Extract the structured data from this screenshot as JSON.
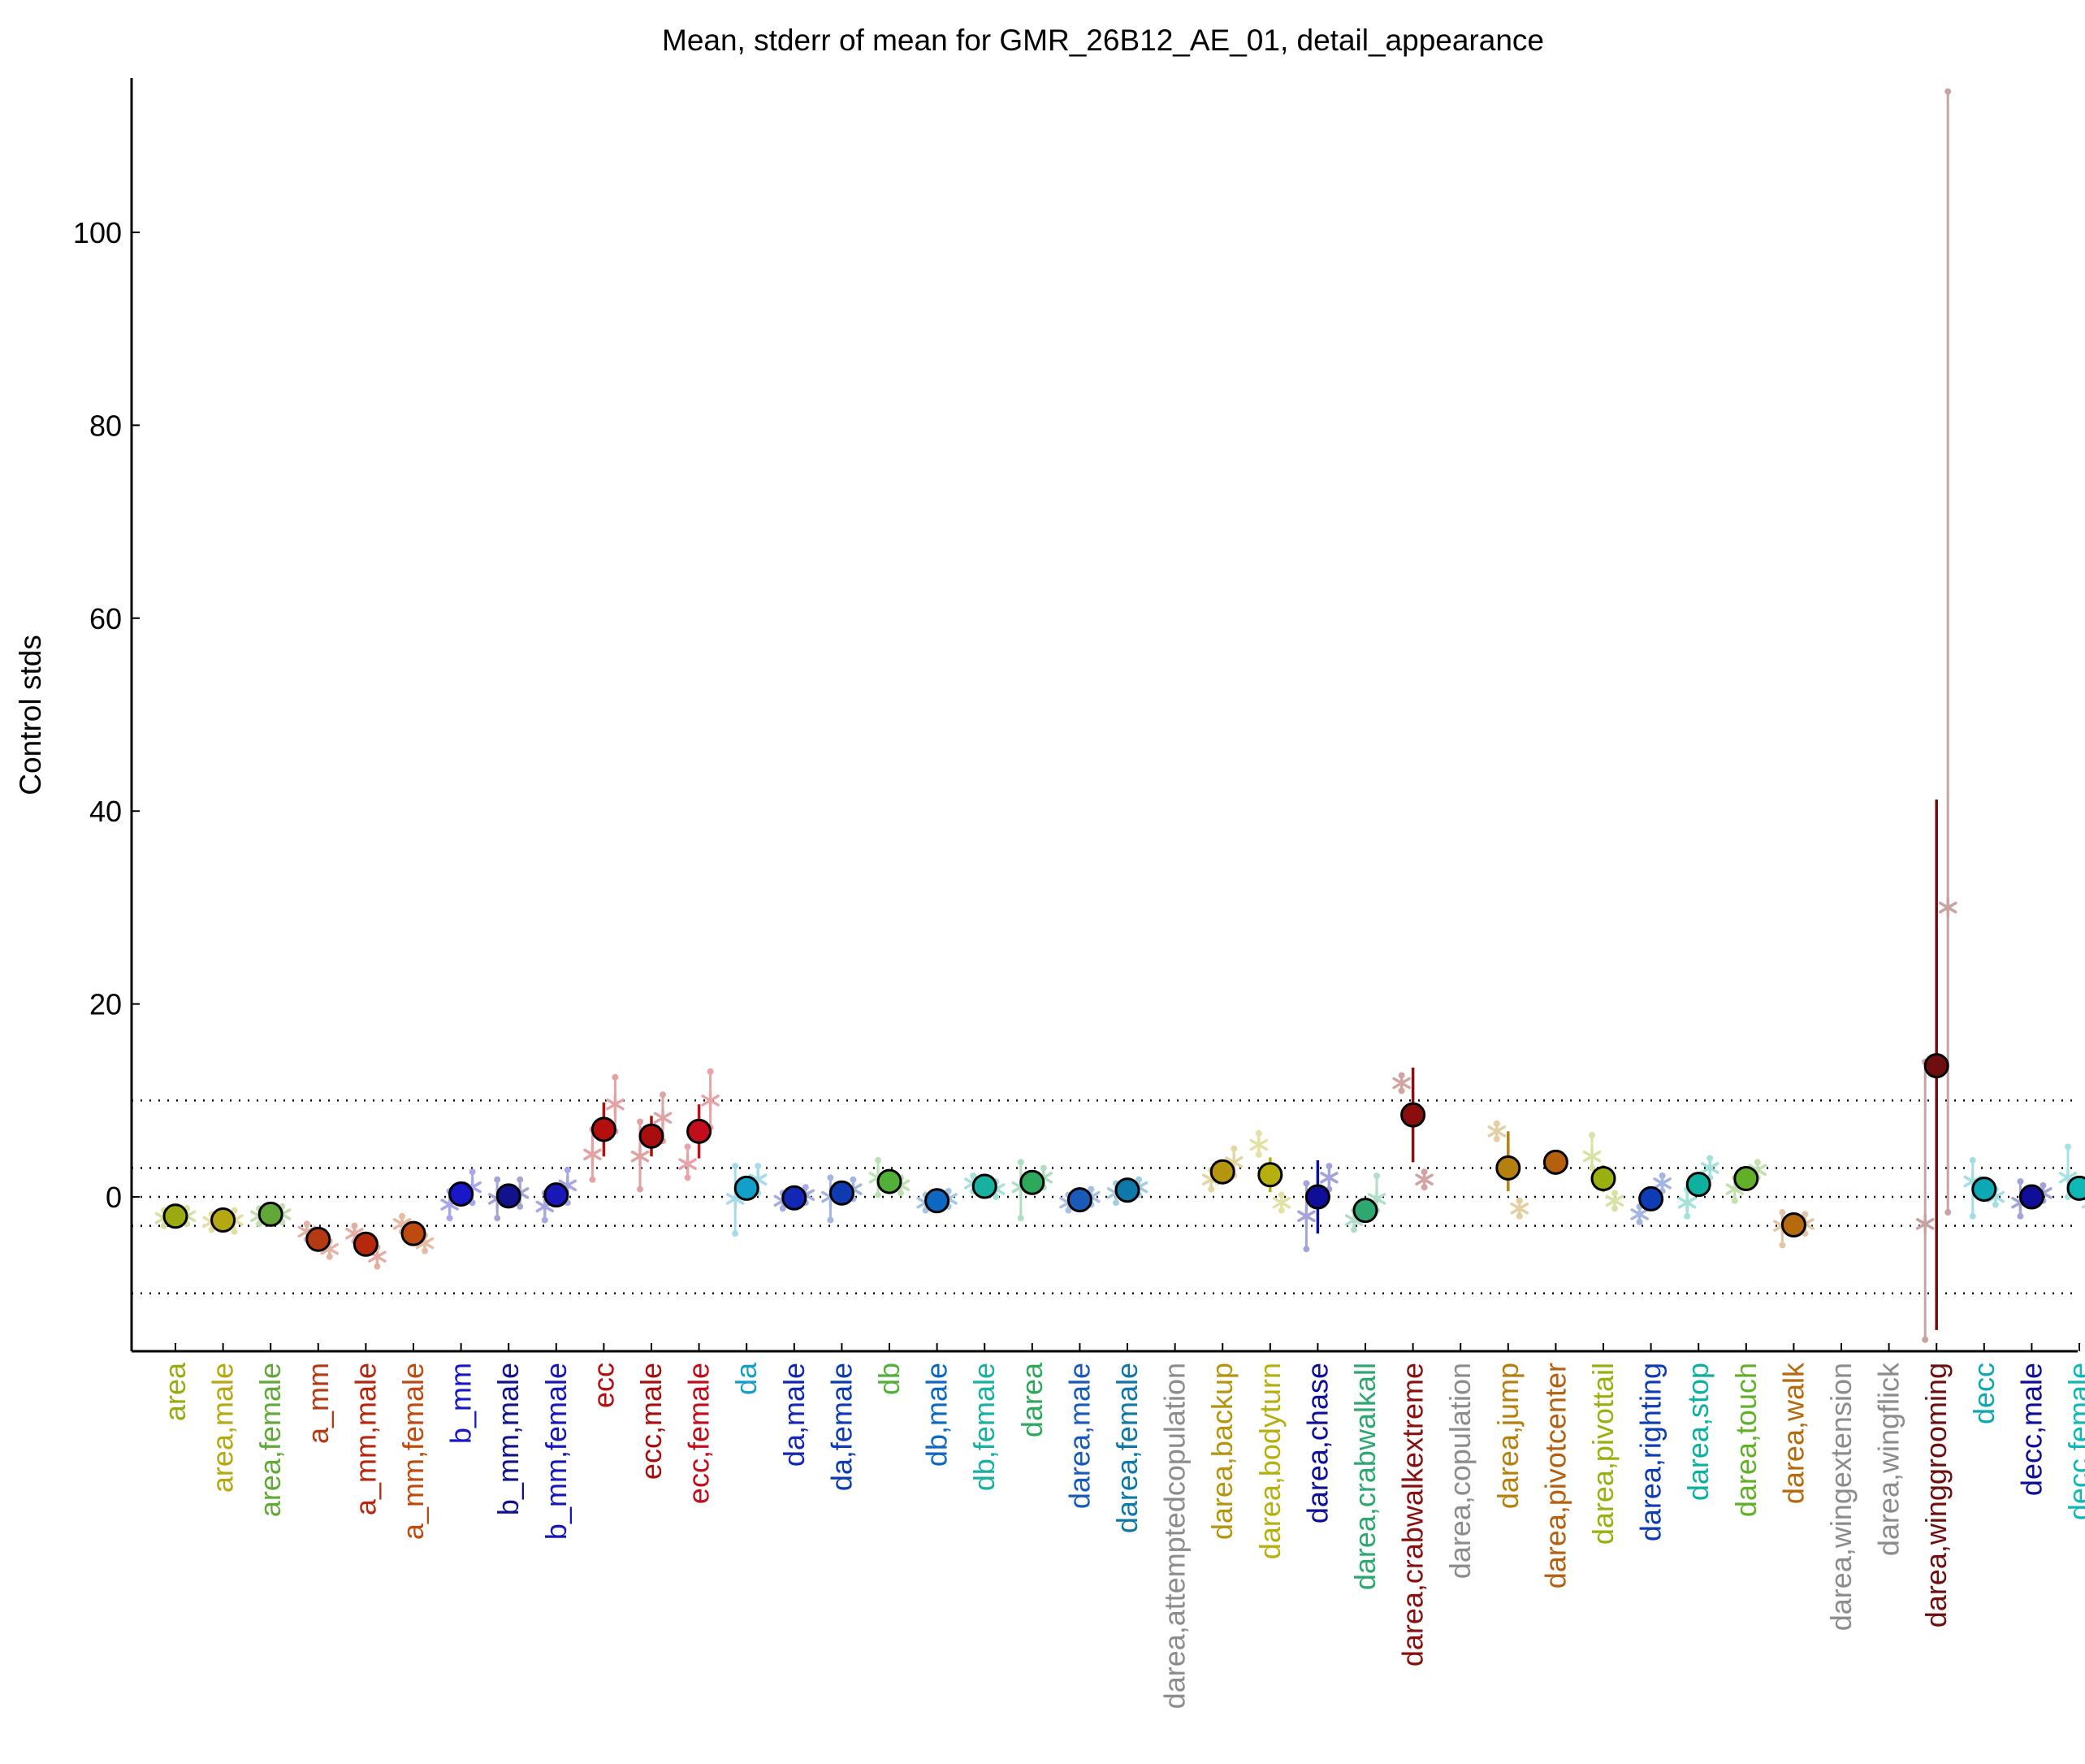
{
  "chart_data": {
    "type": "scatter",
    "title": "Mean, stderr of mean for GMR_26B12_AE_01, detail_appearance",
    "ylabel": "Control stds",
    "xlabel": "",
    "ylim": [
      -16,
      116
    ],
    "yticks": [
      0,
      20,
      40,
      60,
      80,
      100
    ],
    "reference_lines": [
      -10,
      -3,
      0,
      3,
      10
    ],
    "grid": false,
    "categories": [
      {
        "label": "area",
        "color": "#9aab12",
        "mean": -2.0,
        "lo": -2.8,
        "hi": -1.2,
        "subs": [
          {
            "y": -2.2,
            "lo": -3.0,
            "hi": -1.4
          },
          {
            "y": -2.0,
            "lo": -2.8,
            "hi": -1.2
          }
        ]
      },
      {
        "label": "area,male",
        "color": "#b5a810",
        "mean": -2.4,
        "lo": -3.2,
        "hi": -1.6,
        "subs": [
          {
            "y": -2.6,
            "lo": -3.4,
            "hi": -1.8
          },
          {
            "y": -2.4,
            "lo": -3.6,
            "hi": -1.4
          }
        ]
      },
      {
        "label": "area,female",
        "color": "#62a838",
        "mean": -1.8,
        "lo": -2.6,
        "hi": -1.0,
        "subs": [
          {
            "y": -2.0,
            "lo": -2.8,
            "hi": -1.2
          },
          {
            "y": -1.8,
            "lo": -2.6,
            "hi": -1.0
          }
        ]
      },
      {
        "label": "a_mm",
        "color": "#b53a12",
        "mean": -4.4,
        "lo": -5.4,
        "hi": -3.4,
        "subs": [
          {
            "y": -3.6,
            "lo": -4.4,
            "hi": -2.8
          },
          {
            "y": -5.4,
            "lo": -6.2,
            "hi": -4.6
          }
        ]
      },
      {
        "label": "a_mm,male",
        "color": "#b5280e",
        "mean": -4.9,
        "lo": -6.0,
        "hi": -3.8,
        "subs": [
          {
            "y": -3.8,
            "lo": -4.6,
            "hi": -3.0
          },
          {
            "y": -6.2,
            "lo": -7.2,
            "hi": -5.2
          }
        ]
      },
      {
        "label": "a_mm,female",
        "color": "#bd4a0e",
        "mean": -3.8,
        "lo": -4.6,
        "hi": -3.0,
        "subs": [
          {
            "y": -2.8,
            "lo": -3.6,
            "hi": -2.0
          },
          {
            "y": -4.8,
            "lo": -5.6,
            "hi": -4.0
          }
        ]
      },
      {
        "label": "b_mm",
        "color": "#1818c8",
        "mean": 0.3,
        "lo": -0.7,
        "hi": 1.3,
        "subs": [
          {
            "y": -0.8,
            "lo": -2.2,
            "hi": 0.6
          },
          {
            "y": 1.0,
            "lo": -0.6,
            "hi": 2.6
          }
        ]
      },
      {
        "label": "b_mm,male",
        "color": "#12128a",
        "mean": 0.1,
        "lo": -0.9,
        "hi": 1.1,
        "subs": [
          {
            "y": -0.2,
            "lo": -2.2,
            "hi": 1.8
          },
          {
            "y": 0.4,
            "lo": -1.0,
            "hi": 1.8
          }
        ]
      },
      {
        "label": "b_mm,female",
        "color": "#1818b8",
        "mean": 0.2,
        "lo": -0.8,
        "hi": 1.2,
        "subs": [
          {
            "y": -1.0,
            "lo": -2.4,
            "hi": 0.4
          },
          {
            "y": 1.2,
            "lo": -0.6,
            "hi": 2.8
          }
        ]
      },
      {
        "label": "ecc",
        "color": "#b50e0e",
        "mean": 7.0,
        "lo": 4.2,
        "hi": 9.8,
        "subs": [
          {
            "y": 4.4,
            "lo": 1.8,
            "hi": 7.0
          },
          {
            "y": 9.6,
            "lo": 6.8,
            "hi": 12.4
          }
        ]
      },
      {
        "label": "ecc,male",
        "color": "#a80e0e",
        "mean": 6.3,
        "lo": 4.2,
        "hi": 8.4,
        "subs": [
          {
            "y": 4.2,
            "lo": 0.8,
            "hi": 7.8
          },
          {
            "y": 8.2,
            "lo": 5.8,
            "hi": 10.6
          }
        ]
      },
      {
        "label": "ecc,female",
        "color": "#c20e1c",
        "mean": 6.8,
        "lo": 4.0,
        "hi": 9.6,
        "subs": [
          {
            "y": 3.4,
            "lo": 2.0,
            "hi": 5.2
          },
          {
            "y": 10.0,
            "lo": 7.2,
            "hi": 13.0
          }
        ]
      },
      {
        "label": "da",
        "color": "#12a0c8",
        "mean": 0.9,
        "lo": -0.3,
        "hi": 2.1,
        "subs": [
          {
            "y": -0.2,
            "lo": -3.8,
            "hi": 3.2
          },
          {
            "y": 1.8,
            "lo": 0.4,
            "hi": 3.2
          }
        ]
      },
      {
        "label": "da,male",
        "color": "#1228b5",
        "mean": -0.1,
        "lo": -0.9,
        "hi": 0.7,
        "subs": [
          {
            "y": -0.4,
            "lo": -1.2,
            "hi": 0.4
          },
          {
            "y": 0.2,
            "lo": -0.6,
            "hi": 1.0
          }
        ]
      },
      {
        "label": "da,female",
        "color": "#0e3cb0",
        "mean": 0.4,
        "lo": -0.6,
        "hi": 1.4,
        "subs": [
          {
            "y": 0.0,
            "lo": -2.4,
            "hi": 2.0
          },
          {
            "y": 0.8,
            "lo": -0.2,
            "hi": 1.8
          }
        ]
      },
      {
        "label": "db",
        "color": "#52b038",
        "mean": 1.6,
        "lo": 0.8,
        "hi": 2.4,
        "subs": [
          {
            "y": 2.0,
            "lo": 0.2,
            "hi": 3.8
          },
          {
            "y": 1.2,
            "lo": 0.4,
            "hi": 2.0
          }
        ]
      },
      {
        "label": "db,male",
        "color": "#0e68c0",
        "mean": -0.4,
        "lo": -1.2,
        "hi": 0.4,
        "subs": [
          {
            "y": -0.6,
            "lo": -1.4,
            "hi": 0.2
          },
          {
            "y": -0.2,
            "lo": -1.0,
            "hi": 0.6
          }
        ]
      },
      {
        "label": "db,female",
        "color": "#18b0a0",
        "mean": 1.1,
        "lo": 0.3,
        "hi": 1.9,
        "subs": [
          {
            "y": 1.4,
            "lo": 0.6,
            "hi": 2.2
          },
          {
            "y": 0.8,
            "lo": 0.0,
            "hi": 1.6
          }
        ]
      },
      {
        "label": "darea",
        "color": "#2ea85a",
        "mean": 1.5,
        "lo": 0.5,
        "hi": 2.5,
        "subs": [
          {
            "y": 1.0,
            "lo": -2.2,
            "hi": 3.6
          },
          {
            "y": 2.0,
            "lo": 1.0,
            "hi": 3.0
          }
        ]
      },
      {
        "label": "darea,male",
        "color": "#1a5ab8",
        "mean": -0.3,
        "lo": -1.1,
        "hi": 0.5,
        "subs": [
          {
            "y": -0.6,
            "lo": -1.4,
            "hi": 0.2
          },
          {
            "y": 0.0,
            "lo": -0.8,
            "hi": 0.8
          }
        ]
      },
      {
        "label": "darea,female",
        "color": "#0e78a8",
        "mean": 0.7,
        "lo": -0.1,
        "hi": 1.5,
        "subs": [
          {
            "y": 0.4,
            "lo": -0.6,
            "hi": 1.4
          },
          {
            "y": 1.0,
            "lo": 0.2,
            "hi": 1.8
          }
        ]
      },
      {
        "label": "darea,attemptedcopulation",
        "color": "#8c8c8c",
        "mean": null,
        "lo": null,
        "hi": null,
        "subs": []
      },
      {
        "label": "darea,backup",
        "color": "#b5940e",
        "mean": 2.6,
        "lo": 1.6,
        "hi": 3.6,
        "subs": [
          {
            "y": 1.8,
            "lo": 0.8,
            "hi": 2.8
          },
          {
            "y": 3.6,
            "lo": 2.2,
            "hi": 5.0
          }
        ]
      },
      {
        "label": "darea,bodyturn",
        "color": "#b5b00e",
        "mean": 2.3,
        "lo": 0.5,
        "hi": 4.1,
        "subs": [
          {
            "y": 5.4,
            "lo": 4.4,
            "hi": 6.6
          },
          {
            "y": -0.6,
            "lo": -1.4,
            "hi": 0.2
          }
        ]
      },
      {
        "label": "darea,chase",
        "color": "#0e0e98",
        "mean": 0.0,
        "lo": -3.8,
        "hi": 3.8,
        "subs": [
          {
            "y": -2.0,
            "lo": -5.4,
            "hi": 1.4
          },
          {
            "y": 2.0,
            "lo": 0.8,
            "hi": 3.2
          }
        ]
      },
      {
        "label": "darea,crabwalkall",
        "color": "#2ea870",
        "mean": -1.4,
        "lo": -2.4,
        "hi": -0.4,
        "subs": [
          {
            "y": -2.4,
            "lo": -3.4,
            "hi": -1.4
          },
          {
            "y": -0.2,
            "lo": -1.4,
            "hi": 2.2
          }
        ]
      },
      {
        "label": "darea,crabwalkextreme",
        "color": "#8a0e0e",
        "mean": 8.5,
        "lo": 3.6,
        "hi": 13.4,
        "subs": [
          {
            "y": 11.8,
            "lo": 11.0,
            "hi": 12.6
          },
          {
            "y": 1.8,
            "lo": 1.0,
            "hi": 2.6
          }
        ]
      },
      {
        "label": "darea,copulation",
        "color": "#8c8c8c",
        "mean": null,
        "lo": null,
        "hi": null,
        "subs": []
      },
      {
        "label": "darea,jump",
        "color": "#b5800e",
        "mean": 3.0,
        "lo": 0.6,
        "hi": 6.8,
        "subs": [
          {
            "y": 6.8,
            "lo": 6.0,
            "hi": 7.6
          },
          {
            "y": -1.2,
            "lo": -2.0,
            "hi": -0.4
          }
        ]
      },
      {
        "label": "darea,pivotcenter",
        "color": "#b5600e",
        "mean": 3.6,
        "lo": 2.8,
        "hi": 4.4,
        "subs": []
      },
      {
        "label": "darea,pivottail",
        "color": "#9ab00e",
        "mean": 1.9,
        "lo": 0.5,
        "hi": 3.3,
        "subs": [
          {
            "y": 4.2,
            "lo": 3.0,
            "hi": 6.4
          },
          {
            "y": -0.4,
            "lo": -1.2,
            "hi": 0.4
          }
        ]
      },
      {
        "label": "darea,righting",
        "color": "#0e3cb5",
        "mean": -0.2,
        "lo": -1.0,
        "hi": 0.6,
        "subs": [
          {
            "y": -1.8,
            "lo": -2.6,
            "hi": -1.0
          },
          {
            "y": 1.4,
            "lo": 0.6,
            "hi": 2.2
          }
        ]
      },
      {
        "label": "darea,stop",
        "color": "#0eb0a0",
        "mean": 1.3,
        "lo": 0.1,
        "hi": 2.5,
        "subs": [
          {
            "y": -0.6,
            "lo": -2.0,
            "hi": 0.8
          },
          {
            "y": 3.0,
            "lo": 2.0,
            "hi": 4.0
          }
        ]
      },
      {
        "label": "darea,touch",
        "color": "#62b028",
        "mean": 1.9,
        "lo": 1.1,
        "hi": 2.7,
        "subs": [
          {
            "y": 0.8,
            "lo": -0.4,
            "hi": 2.0
          },
          {
            "y": 2.8,
            "lo": 2.0,
            "hi": 3.6
          }
        ]
      },
      {
        "label": "darea,walk",
        "color": "#b56a0e",
        "mean": -2.9,
        "lo": -3.9,
        "hi": -1.9,
        "subs": [
          {
            "y": -3.0,
            "lo": -5.0,
            "hi": -1.6
          },
          {
            "y": -2.8,
            "lo": -3.8,
            "hi": -1.8
          }
        ]
      },
      {
        "label": "darea,wingextension",
        "color": "#8c8c8c",
        "mean": null,
        "lo": null,
        "hi": null,
        "subs": []
      },
      {
        "label": "darea,wingflick",
        "color": "#8c8c8c",
        "mean": null,
        "lo": null,
        "hi": null,
        "subs": []
      },
      {
        "label": "darea,winggrooming",
        "color": "#6e0e0e",
        "mean": 13.6,
        "lo": -13.8,
        "hi": 41.2,
        "subs": [
          {
            "y": -2.8,
            "lo": -14.8,
            "hi": 14.0
          },
          {
            "y": 30.0,
            "lo": -1.6,
            "hi": 114.6
          }
        ]
      },
      {
        "label": "decc",
        "color": "#0ea8b5",
        "mean": 0.8,
        "lo": 0.0,
        "hi": 1.6,
        "subs": [
          {
            "y": 1.6,
            "lo": -2.0,
            "hi": 3.8
          },
          {
            "y": 0.0,
            "lo": -0.8,
            "hi": 0.8
          }
        ]
      },
      {
        "label": "decc,male",
        "color": "#0e0e98",
        "mean": 0.0,
        "lo": -0.8,
        "hi": 0.8,
        "subs": [
          {
            "y": -0.6,
            "lo": -2.0,
            "hi": 1.6
          },
          {
            "y": 0.4,
            "lo": -0.4,
            "hi": 1.2
          }
        ]
      },
      {
        "label": "decc,female",
        "color": "#0eb8b5",
        "mean": 0.9,
        "lo": 0.1,
        "hi": 1.7,
        "subs": [
          {
            "y": 2.0,
            "lo": 0.0,
            "hi": 5.2
          },
          {
            "y": -0.6,
            "lo": -1.8,
            "hi": 0.6
          }
        ]
      }
    ]
  }
}
